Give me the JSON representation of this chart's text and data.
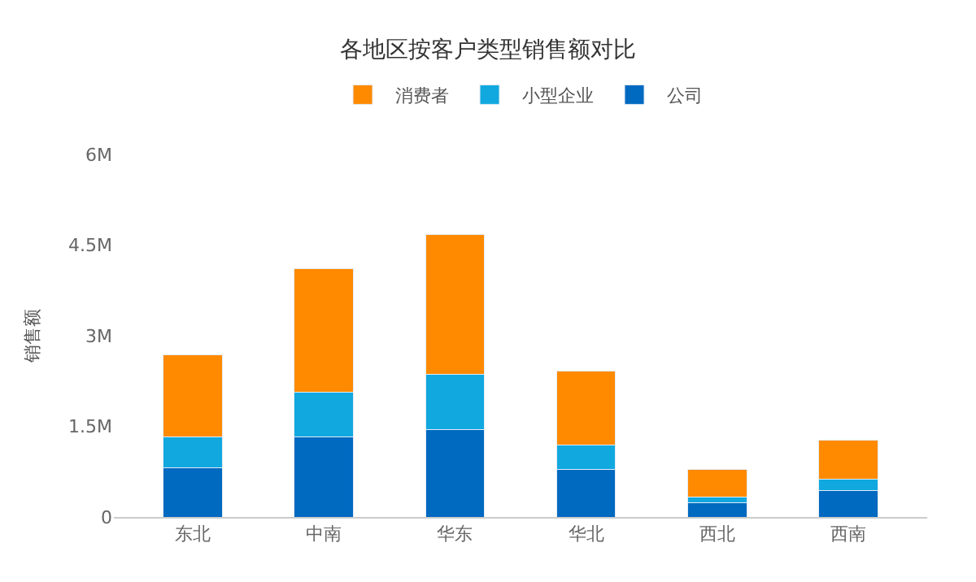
{
  "chart_data": {
    "type": "bar",
    "title": "各地区按客户类型销售额对比",
    "ylabel": "销售额",
    "stacked": true,
    "legend": "top",
    "grid": false,
    "categories": [
      "东北",
      "中南",
      "华东",
      "华北",
      "西北",
      "西南"
    ],
    "series": [
      {
        "name": "公司",
        "color": "#0069c0",
        "values": [
          810000,
          1320000,
          1440000,
          790000,
          230000,
          440000
        ]
      },
      {
        "name": "小型企业",
        "color": "#11a8e0",
        "values": [
          510000,
          740000,
          920000,
          400000,
          100000,
          180000
        ]
      },
      {
        "name": "消费者",
        "color": "#ff8a00",
        "values": [
          1370000,
          2050000,
          2310000,
          1230000,
          460000,
          650000
        ]
      }
    ],
    "ylim": [
      0,
      6000000
    ],
    "yticks": [
      {
        "value": 0,
        "label": "0"
      },
      {
        "value": 1500000,
        "label": "1.5M"
      },
      {
        "value": 3000000,
        "label": "3M"
      },
      {
        "value": 4500000,
        "label": "4.5M"
      },
      {
        "value": 6000000,
        "label": "6M"
      }
    ]
  }
}
